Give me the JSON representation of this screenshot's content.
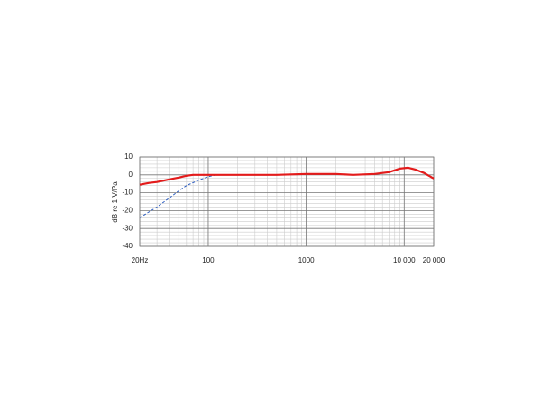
{
  "chart_data": {
    "type": "line",
    "y_label": "dB re 1 V/Pa",
    "xscale": "log",
    "grid": true,
    "xlim": [
      20,
      20000
    ],
    "ylim": [
      -40,
      10
    ],
    "xticks": [
      {
        "value": 20,
        "label": "20Hz"
      },
      100,
      1000,
      {
        "value": 10000,
        "label": "10 000"
      },
      {
        "value": 20000,
        "label": "20 000"
      }
    ],
    "yticks": [
      10,
      0,
      -10,
      -20,
      -30,
      -40
    ],
    "series": [
      {
        "color": "#e31b1b",
        "style": "solid",
        "x": [
          20,
          25,
          30,
          40,
          50,
          60,
          70,
          100,
          200,
          500,
          1000,
          2000,
          3000,
          5000,
          7000,
          9000,
          11000,
          13000,
          16000,
          20000
        ],
        "values": [
          -5.5,
          -4.5,
          -4,
          -2.5,
          -1.5,
          -0.5,
          0,
          0,
          0,
          0,
          0.5,
          0.5,
          0,
          0.5,
          1.5,
          3.5,
          4,
          3,
          1,
          -2
        ]
      },
      {
        "color": "#2a5bbf",
        "style": "dashed",
        "x": [
          20,
          30,
          40,
          50,
          60,
          80,
          100,
          120
        ],
        "values": [
          -24,
          -18,
          -13,
          -9,
          -6,
          -3,
          -1,
          0
        ]
      }
    ]
  }
}
